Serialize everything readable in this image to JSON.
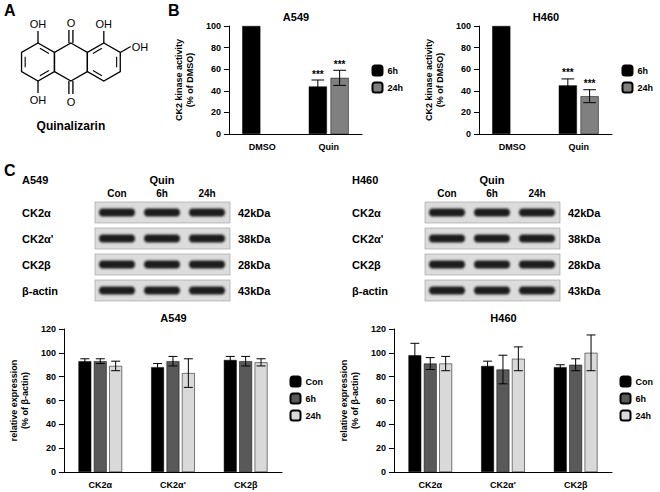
{
  "panel_labels": [
    "A",
    "B",
    "C"
  ],
  "structure": {
    "name": "Quinalizarin",
    "groups": [
      "OH",
      "O",
      "OH",
      "OH",
      "OH",
      "O"
    ]
  },
  "blots": [
    {
      "cell_line": "A549",
      "treatment": "Quin",
      "lanes": [
        "Con",
        "6h",
        "24h"
      ],
      "rows": [
        {
          "protein": "CK2α",
          "size": "42kDa"
        },
        {
          "protein": "CK2α'",
          "size": "38kDa"
        },
        {
          "protein": "CK2β",
          "size": "28kDa"
        },
        {
          "protein": "β-actin",
          "size": "43kDa"
        }
      ]
    },
    {
      "cell_line": "H460",
      "treatment": "Quin",
      "lanes": [
        "Con",
        "6h",
        "24h"
      ],
      "rows": [
        {
          "protein": "CK2α",
          "size": "42kDa"
        },
        {
          "protein": "CK2α'",
          "size": "38kDa"
        },
        {
          "protein": "CK2β",
          "size": "28kDa"
        },
        {
          "protein": "β-actin",
          "size": "43kDa"
        }
      ]
    }
  ],
  "chart_data": [
    {
      "type": "bar",
      "title": "A549",
      "categories": [
        "DMSO",
        "Quin"
      ],
      "ylabel": "CK2 kinase activity\n(% of DMSO)",
      "ylim": [
        0,
        100
      ],
      "yticks": [
        0,
        20,
        40,
        60,
        80,
        100
      ],
      "grid": false,
      "legend": "right",
      "series": [
        {
          "name": "6h",
          "color": "#000000",
          "values": [
            100,
            44
          ],
          "errors": [
            null,
            6
          ],
          "annotations": [
            null,
            "***"
          ]
        },
        {
          "name": "24h",
          "color": "#808080",
          "values": [
            null,
            52
          ],
          "errors": [
            null,
            7
          ],
          "annotations": [
            null,
            "***"
          ]
        }
      ]
    },
    {
      "type": "bar",
      "title": "H460",
      "categories": [
        "DMSO",
        "Quin"
      ],
      "ylabel": "CK2 kinase activity\n(% of DMSO)",
      "ylim": [
        0,
        100
      ],
      "yticks": [
        0,
        20,
        40,
        60,
        80,
        100
      ],
      "grid": false,
      "legend": "right",
      "series": [
        {
          "name": "6h",
          "color": "#000000",
          "values": [
            100,
            45
          ],
          "errors": [
            null,
            6
          ],
          "annotations": [
            null,
            "***"
          ]
        },
        {
          "name": "24h",
          "color": "#808080",
          "values": [
            null,
            35
          ],
          "errors": [
            null,
            6
          ],
          "annotations": [
            null,
            "***"
          ]
        }
      ]
    },
    {
      "type": "bar",
      "title": "A549",
      "categories": [
        "CK2α",
        "CK2α'",
        "CK2β"
      ],
      "ylabel": "relative expression\n(% of β-actin)",
      "ylim": [
        0,
        120
      ],
      "yticks": [
        0,
        20,
        40,
        60,
        80,
        100,
        120
      ],
      "grid": false,
      "legend": "right",
      "series": [
        {
          "name": "Con",
          "color": "#000000",
          "values": [
            93,
            88,
            94
          ],
          "errors": [
            2,
            3,
            3
          ]
        },
        {
          "name": "6h",
          "color": "#595959",
          "values": [
            93,
            93,
            93
          ],
          "errors": [
            2,
            4,
            4
          ]
        },
        {
          "name": "24h",
          "color": "#d9d9d9",
          "values": [
            89,
            83,
            92
          ],
          "errors": [
            4,
            12,
            3
          ]
        }
      ]
    },
    {
      "type": "bar",
      "title": "H460",
      "categories": [
        "CK2α",
        "CK2α'",
        "CK2β"
      ],
      "ylabel": "relative expression\n(% of β-actin)",
      "ylim": [
        0,
        120
      ],
      "yticks": [
        0,
        20,
        40,
        60,
        80,
        100,
        120
      ],
      "grid": false,
      "legend": "right",
      "series": [
        {
          "name": "Con",
          "color": "#000000",
          "values": [
            98,
            89,
            88
          ],
          "errors": [
            10,
            4,
            2
          ]
        },
        {
          "name": "6h",
          "color": "#595959",
          "values": [
            91,
            86,
            90
          ],
          "errors": [
            5,
            12,
            5
          ]
        },
        {
          "name": "24h",
          "color": "#d9d9d9",
          "values": [
            91,
            95,
            100
          ],
          "errors": [
            6,
            10,
            15
          ]
        }
      ]
    }
  ]
}
